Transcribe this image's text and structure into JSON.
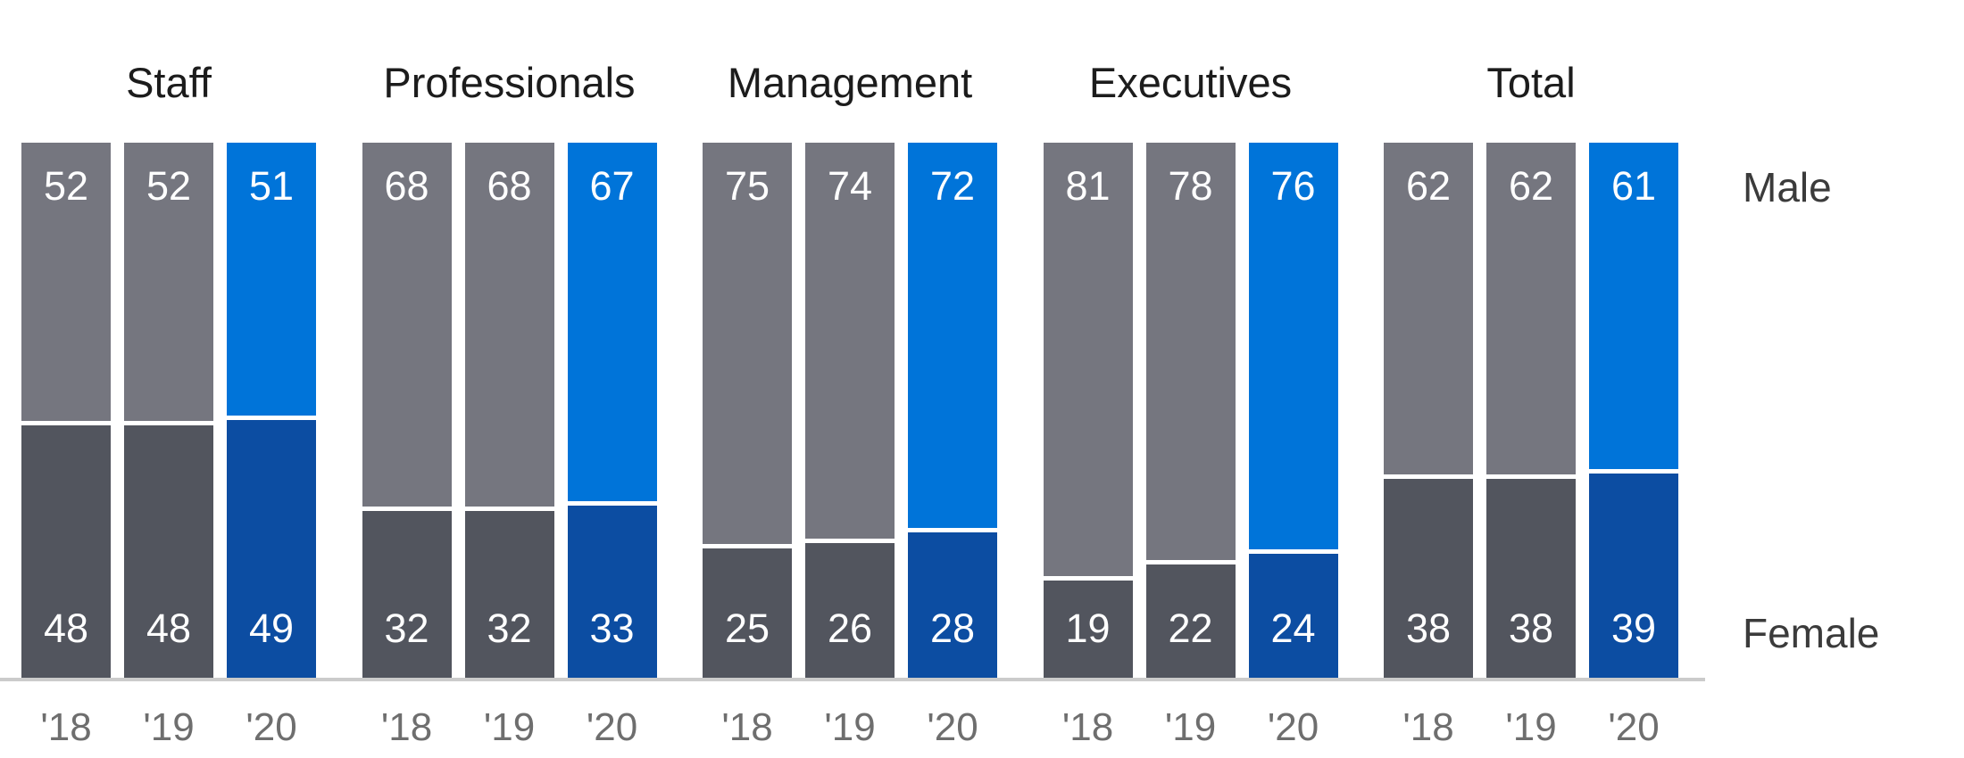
{
  "chart_data": {
    "type": "bar",
    "subtype": "100-percent-stacked-column",
    "title": "",
    "groups": [
      "Staff",
      "Professionals",
      "Management",
      "Executives",
      "Total"
    ],
    "categories": [
      "'18",
      "'19",
      "'20"
    ],
    "highlight_category": "'20",
    "series": [
      {
        "name": "Male",
        "position": "top",
        "values": [
          [
            52,
            52,
            51
          ],
          [
            68,
            68,
            67
          ],
          [
            75,
            74,
            72
          ],
          [
            81,
            78,
            76
          ],
          [
            62,
            62,
            61
          ]
        ]
      },
      {
        "name": "Female",
        "position": "bottom",
        "values": [
          [
            48,
            48,
            49
          ],
          [
            32,
            32,
            33
          ],
          [
            25,
            26,
            28
          ],
          [
            19,
            22,
            24
          ],
          [
            38,
            38,
            39
          ]
        ]
      }
    ],
    "value_labels_shown": true,
    "axis": {
      "ylim": [
        0,
        100
      ],
      "gridlines": false,
      "baseline_shown": true,
      "series_label_position": "right"
    },
    "colors": {
      "male_past": "#75767F",
      "female_past": "#52555E",
      "male_current": "#0074D9",
      "female_current": "#0C4DA2",
      "baseline": "#CBCBCB",
      "tick_text": "#6E6E6E",
      "group_title_text": "#1C1C1C",
      "series_label_text": "#3B3B3B",
      "value_text": "#FFFFFF"
    }
  }
}
